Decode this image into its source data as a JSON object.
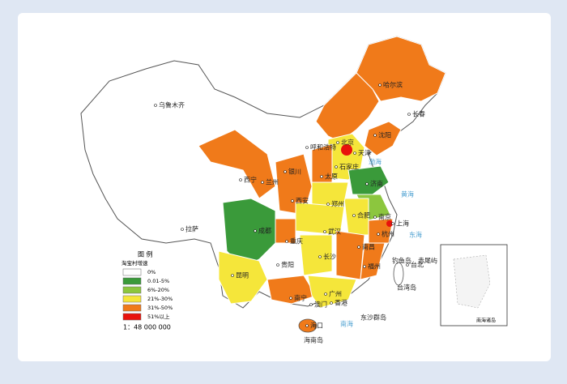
{
  "legend": {
    "title": "图 例",
    "subtitle": "淘宝村增速",
    "items": [
      {
        "label": "0%",
        "color": "#ffffff"
      },
      {
        "label": "0.01-5%",
        "color": "#3a9a3a"
      },
      {
        "label": "6%-20%",
        "color": "#8cc63e"
      },
      {
        "label": "21%-30%",
        "color": "#f5e63a"
      },
      {
        "label": "31%-50%",
        "color": "#f07a1a"
      },
      {
        "label": "51%以上",
        "color": "#e8120c"
      }
    ]
  },
  "scale": "1：48 000 000",
  "cities": [
    "乌鲁木齐",
    "哈尔滨",
    "长春",
    "沈阳",
    "呼和浩特",
    "北京",
    "天津",
    "石家庄",
    "太原",
    "银川",
    "西宁",
    "兰州",
    "济南",
    "西安",
    "郑州",
    "合肥",
    "南京",
    "上海",
    "杭州",
    "武汉",
    "成都",
    "重庆",
    "拉萨",
    "贵阳",
    "长沙",
    "南昌",
    "福州",
    "台北",
    "昆明",
    "南宁",
    "广州",
    "香港",
    "澳门",
    "海口"
  ],
  "places": [
    "台湾岛",
    "钓鱼岛",
    "赤尾屿",
    "东沙群岛",
    "海南岛"
  ],
  "seas": [
    "渤海",
    "黄海",
    "东海",
    "南海"
  ],
  "inset": {
    "title": "南海诸岛"
  }
}
